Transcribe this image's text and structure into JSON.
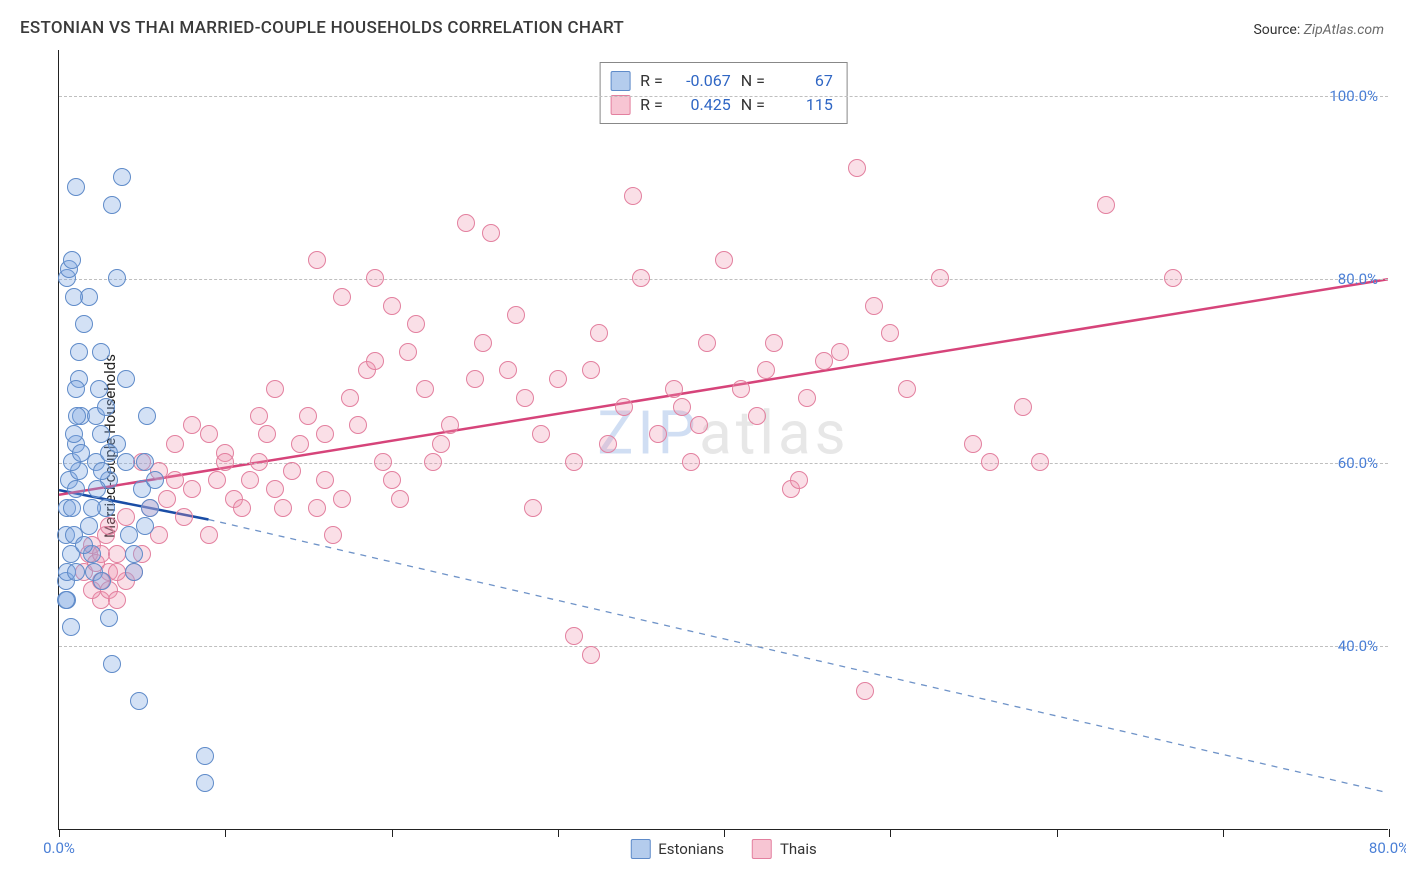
{
  "title": "ESTONIAN VS THAI MARRIED-COUPLE HOUSEHOLDS CORRELATION CHART",
  "source_prefix": "Source: ",
  "source_name": "ZipAtlas.com",
  "y_axis_title": "Married-couple Households",
  "watermark_zip": "ZIP",
  "watermark_atlas": "atlas",
  "chart": {
    "type": "scatter",
    "xlim": [
      0,
      80
    ],
    "ylim": [
      20,
      105
    ],
    "x_ticks": [
      0,
      10,
      20,
      30,
      40,
      50,
      60,
      70,
      80
    ],
    "x_tick_labels": {
      "0": "0.0%",
      "80": "80.0%"
    },
    "y_grid": [
      40,
      60,
      80,
      100
    ],
    "y_labels": {
      "40": "40.0%",
      "60": "60.0%",
      "80": "80.0%",
      "100": "100.0%"
    },
    "background_color": "#ffffff",
    "grid_color": "#bfbfbf",
    "label_color": "#4a7fd6",
    "axis_color": "#222222",
    "series": {
      "estonians": {
        "label": "Estonians",
        "marker_color_fill": "rgba(130,170,225,0.35)",
        "marker_color_stroke": "#5f8bc9",
        "marker_size": 18,
        "R": "-0.067",
        "N": "67",
        "regression": {
          "x1": 0,
          "y1": 57,
          "x2": 9,
          "y2": 53.8,
          "x_extend": 80,
          "y_extend": 24,
          "solid_color": "#1a4da6",
          "solid_width": 2.5,
          "dash_color": "#6f93c8",
          "dash_width": 1.3,
          "dash_pattern": "6,6"
        },
        "points": [
          [
            0.4,
            52
          ],
          [
            0.5,
            55
          ],
          [
            0.6,
            58
          ],
          [
            0.5,
            45
          ],
          [
            0.4,
            47
          ],
          [
            0.8,
            55
          ],
          [
            0.9,
            52
          ],
          [
            0.7,
            50
          ],
          [
            1.0,
            57
          ],
          [
            1.2,
            59
          ],
          [
            1.0,
            62
          ],
          [
            1.3,
            65
          ],
          [
            1.2,
            69
          ],
          [
            0.5,
            80
          ],
          [
            0.6,
            81
          ],
          [
            0.8,
            82
          ],
          [
            1.8,
            78
          ],
          [
            2.2,
            65
          ],
          [
            2.5,
            72
          ],
          [
            2.4,
            68
          ],
          [
            3.2,
            88
          ],
          [
            3.8,
            91
          ],
          [
            2.8,
            55
          ],
          [
            3.0,
            58
          ],
          [
            3.5,
            62
          ],
          [
            4.0,
            60
          ],
          [
            4.5,
            50
          ],
          [
            4.2,
            52
          ],
          [
            5.0,
            57
          ],
          [
            5.2,
            53
          ],
          [
            2.0,
            50
          ],
          [
            2.1,
            48
          ],
          [
            2.6,
            47
          ],
          [
            3.0,
            43
          ],
          [
            3.2,
            38
          ],
          [
            4.8,
            34
          ],
          [
            0.4,
            45
          ],
          [
            0.5,
            48
          ],
          [
            0.7,
            42
          ],
          [
            1.0,
            48
          ],
          [
            1.5,
            51
          ],
          [
            1.8,
            53
          ],
          [
            2.2,
            60
          ],
          [
            2.5,
            63
          ],
          [
            2.8,
            66
          ],
          [
            1.0,
            68
          ],
          [
            1.2,
            72
          ],
          [
            1.5,
            75
          ],
          [
            3.5,
            80
          ],
          [
            4.0,
            69
          ],
          [
            5.3,
            65
          ],
          [
            5.8,
            58
          ],
          [
            1.0,
            90
          ],
          [
            0.9,
            78
          ],
          [
            4.5,
            48
          ],
          [
            2.0,
            55
          ],
          [
            2.3,
            57
          ],
          [
            2.6,
            59
          ],
          [
            3.0,
            61
          ],
          [
            8.8,
            28
          ],
          [
            8.8,
            25
          ],
          [
            0.8,
            60
          ],
          [
            0.9,
            63
          ],
          [
            1.1,
            65
          ],
          [
            1.3,
            61
          ],
          [
            5.2,
            60
          ],
          [
            5.5,
            55
          ]
        ]
      },
      "thais": {
        "label": "Thais",
        "marker_color_fill": "rgba(240,150,175,0.3)",
        "marker_color_stroke": "#e3809f",
        "marker_size": 18,
        "R": "0.425",
        "N": "115",
        "regression": {
          "x1": 0,
          "y1": 56.5,
          "x2": 80,
          "y2": 80,
          "solid_color": "#d6447a",
          "solid_width": 2.5
        },
        "points": [
          [
            1.5,
            48
          ],
          [
            1.8,
            50
          ],
          [
            2.0,
            51
          ],
          [
            2.2,
            49
          ],
          [
            2.5,
            50
          ],
          [
            2.8,
            52
          ],
          [
            3.0,
            48
          ],
          [
            3.5,
            50
          ],
          [
            2.5,
            45
          ],
          [
            3.0,
            46
          ],
          [
            3.5,
            45
          ],
          [
            4.0,
            47
          ],
          [
            4.5,
            48
          ],
          [
            5.0,
            50
          ],
          [
            5.5,
            55
          ],
          [
            6.0,
            52
          ],
          [
            6.5,
            56
          ],
          [
            7.0,
            58
          ],
          [
            7.5,
            54
          ],
          [
            8.0,
            57
          ],
          [
            9.0,
            52
          ],
          [
            9.5,
            58
          ],
          [
            10.0,
            61
          ],
          [
            10.5,
            56
          ],
          [
            11.0,
            55
          ],
          [
            11.5,
            58
          ],
          [
            12.0,
            60
          ],
          [
            12.5,
            63
          ],
          [
            13.0,
            57
          ],
          [
            13.5,
            55
          ],
          [
            14.0,
            59
          ],
          [
            14.5,
            62
          ],
          [
            15.0,
            65
          ],
          [
            15.5,
            55
          ],
          [
            16.0,
            58
          ],
          [
            16.5,
            52
          ],
          [
            17.0,
            56
          ],
          [
            17.5,
            67
          ],
          [
            18.0,
            64
          ],
          [
            18.5,
            70
          ],
          [
            19.0,
            71
          ],
          [
            19.5,
            60
          ],
          [
            20.0,
            58
          ],
          [
            20.5,
            56
          ],
          [
            21.0,
            72
          ],
          [
            21.5,
            75
          ],
          [
            22.0,
            68
          ],
          [
            22.5,
            60
          ],
          [
            23.0,
            62
          ],
          [
            23.5,
            64
          ],
          [
            24.5,
            86
          ],
          [
            25.0,
            69
          ],
          [
            25.5,
            73
          ],
          [
            26.0,
            85
          ],
          [
            27.0,
            70
          ],
          [
            27.5,
            76
          ],
          [
            28.0,
            67
          ],
          [
            29.0,
            63
          ],
          [
            30.0,
            69
          ],
          [
            31.0,
            60
          ],
          [
            32.0,
            70
          ],
          [
            32.5,
            74
          ],
          [
            33.0,
            62
          ],
          [
            34.0,
            66
          ],
          [
            34.5,
            89
          ],
          [
            35.0,
            80
          ],
          [
            36.0,
            63
          ],
          [
            37.0,
            68
          ],
          [
            37.5,
            66
          ],
          [
            38.0,
            60
          ],
          [
            38.5,
            64
          ],
          [
            39.0,
            73
          ],
          [
            40.0,
            82
          ],
          [
            41.0,
            68
          ],
          [
            42.0,
            65
          ],
          [
            42.5,
            70
          ],
          [
            43.0,
            73
          ],
          [
            44.0,
            57
          ],
          [
            44.5,
            58
          ],
          [
            45.0,
            67
          ],
          [
            46.0,
            71
          ],
          [
            47.0,
            72
          ],
          [
            48.0,
            92
          ],
          [
            49.0,
            77
          ],
          [
            50.0,
            74
          ],
          [
            51.0,
            68
          ],
          [
            53.0,
            80
          ],
          [
            55.0,
            62
          ],
          [
            56.0,
            60
          ],
          [
            58.0,
            66
          ],
          [
            59.0,
            60
          ],
          [
            31.0,
            41
          ],
          [
            32.0,
            39
          ],
          [
            48.5,
            35
          ],
          [
            15.5,
            82
          ],
          [
            16.0,
            63
          ],
          [
            17.0,
            78
          ],
          [
            12.0,
            65
          ],
          [
            13.0,
            68
          ],
          [
            9.0,
            63
          ],
          [
            10.0,
            60
          ],
          [
            7.0,
            62
          ],
          [
            8.0,
            64
          ],
          [
            5.0,
            60
          ],
          [
            6.0,
            59
          ],
          [
            3.0,
            53
          ],
          [
            4.0,
            54
          ],
          [
            19.0,
            80
          ],
          [
            20.0,
            77
          ],
          [
            28.5,
            55
          ],
          [
            63.0,
            88
          ],
          [
            67.0,
            80
          ],
          [
            2.0,
            46
          ],
          [
            2.5,
            47
          ],
          [
            3.5,
            48
          ]
        ]
      }
    }
  },
  "regression_labels": {
    "R": "R = ",
    "N": "N = "
  }
}
